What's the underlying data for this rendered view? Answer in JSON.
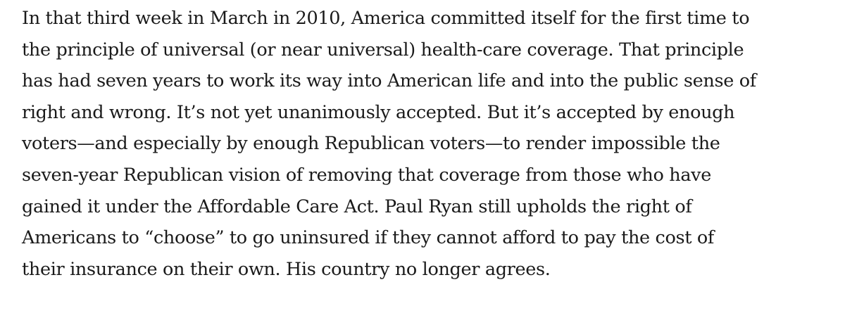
{
  "article": {
    "lines": [
      "In that third week in March in 2010, America committed itself for the first time to",
      "the principle of universal (or near universal) health-care coverage. That principle",
      "has had seven years to work its way into American life and into the public sense of",
      "right and wrong. It’s not yet unanimously accepted. But it’s accepted by enough",
      "voters—and especially by enough Republican voters—to render impossible the",
      "seven-year Republican vision of removing that coverage from those who have",
      "gained it under the Affordable Care Act. Paul Ryan still upholds the right of",
      "Americans to “choose” to go uninsured if they cannot afford to pay the cost of",
      "their insurance on their own. His country no longer agrees."
    ]
  }
}
